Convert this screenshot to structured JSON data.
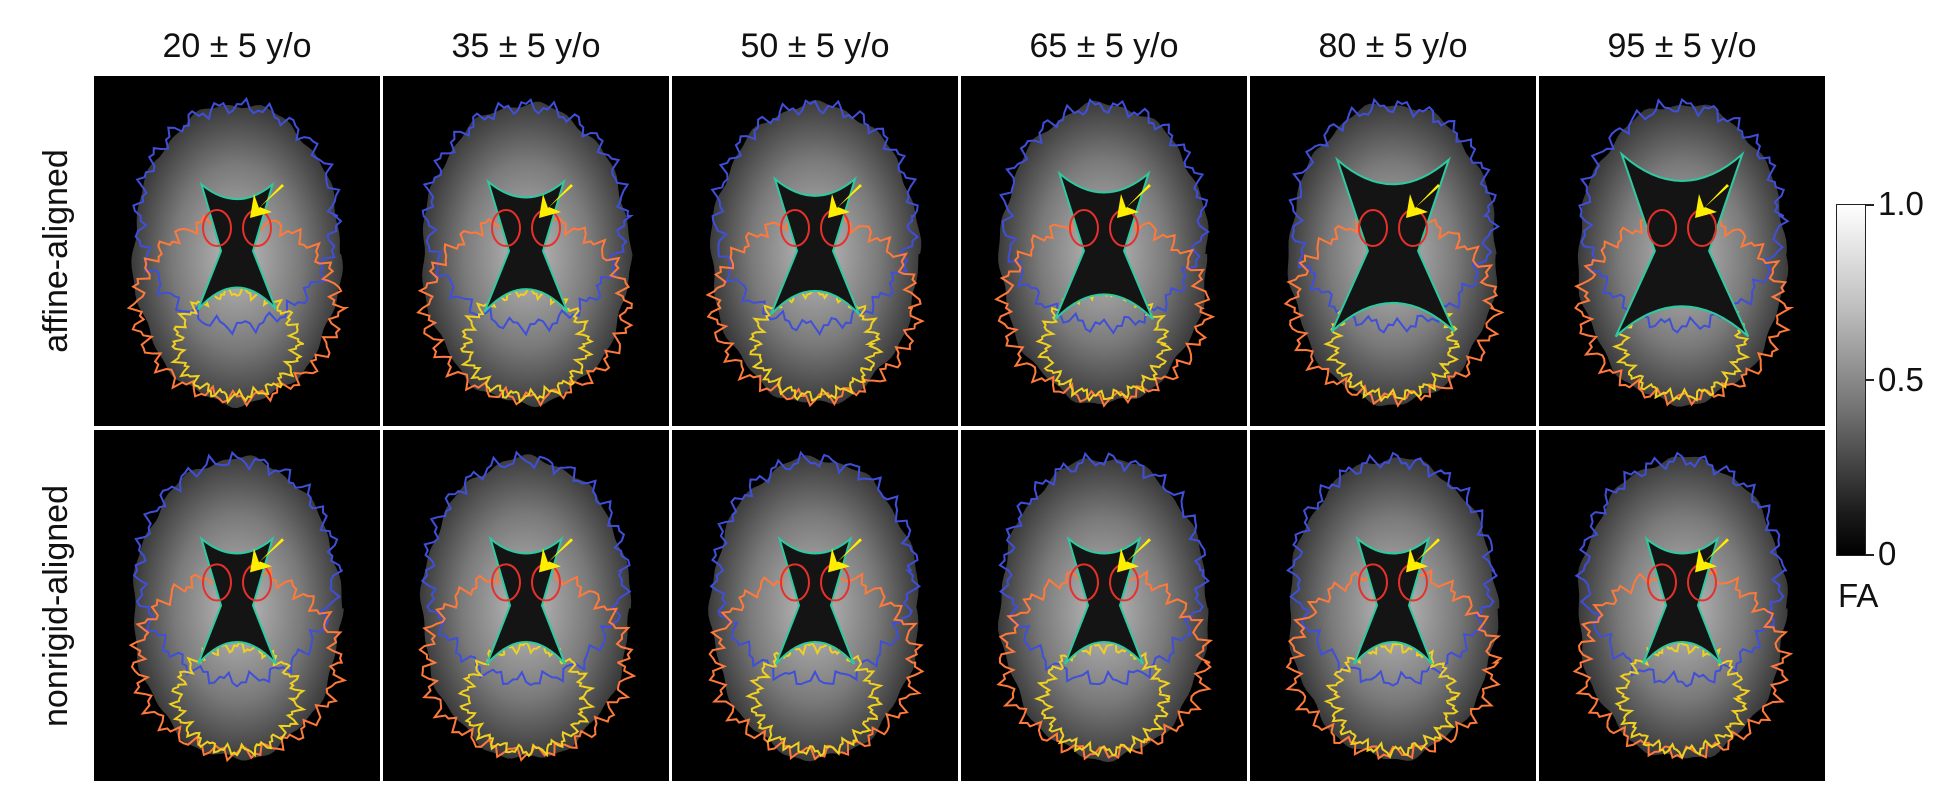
{
  "column_headers": [
    "20 ± 5 y/o",
    "35 ± 5 y/o",
    "50 ± 5 y/o",
    "65 ± 5 y/o",
    "80 ± 5 y/o",
    "95 ± 5 y/o"
  ],
  "row_labels": [
    "affine-aligned",
    "nonrigid-aligned"
  ],
  "colorbar": {
    "label": "FA",
    "ticks": [
      "1.0",
      "0.5",
      "0"
    ]
  },
  "colors": {
    "arrow": "#ffee00",
    "ventricle_outline": "#2ec9a0",
    "frontal_outline": "#3f4fd8",
    "occipital_outline": "#f0d020",
    "temporal_outline": "#ff7a3a",
    "deep_gray_outline": "#e8302a"
  },
  "panels": [
    {
      "row": "affine-aligned",
      "age": "20 ± 5 y/o",
      "ventricle_size": 0.3,
      "arrow": true
    },
    {
      "row": "affine-aligned",
      "age": "35 ± 5 y/o",
      "ventricle_size": 0.35,
      "arrow": true
    },
    {
      "row": "affine-aligned",
      "age": "50 ± 5 y/o",
      "ventricle_size": 0.4,
      "arrow": true
    },
    {
      "row": "affine-aligned",
      "age": "65 ± 5 y/o",
      "ventricle_size": 0.5,
      "arrow": true
    },
    {
      "row": "affine-aligned",
      "age": "80 ± 5 y/o",
      "ventricle_size": 0.75,
      "arrow": true
    },
    {
      "row": "affine-aligned",
      "age": "95 ± 5 y/o",
      "ventricle_size": 0.85,
      "arrow": true
    },
    {
      "row": "nonrigid-aligned",
      "age": "20 ± 5 y/o",
      "ventricle_size": 0.3,
      "arrow": true
    },
    {
      "row": "nonrigid-aligned",
      "age": "35 ± 5 y/o",
      "ventricle_size": 0.3,
      "arrow": true
    },
    {
      "row": "nonrigid-aligned",
      "age": "50 ± 5 y/o",
      "ventricle_size": 0.3,
      "arrow": true
    },
    {
      "row": "nonrigid-aligned",
      "age": "65 ± 5 y/o",
      "ventricle_size": 0.3,
      "arrow": true
    },
    {
      "row": "nonrigid-aligned",
      "age": "80 ± 5 y/o",
      "ventricle_size": 0.3,
      "arrow": true
    },
    {
      "row": "nonrigid-aligned",
      "age": "95 ± 5 y/o",
      "ventricle_size": 0.3,
      "arrow": true
    }
  ]
}
